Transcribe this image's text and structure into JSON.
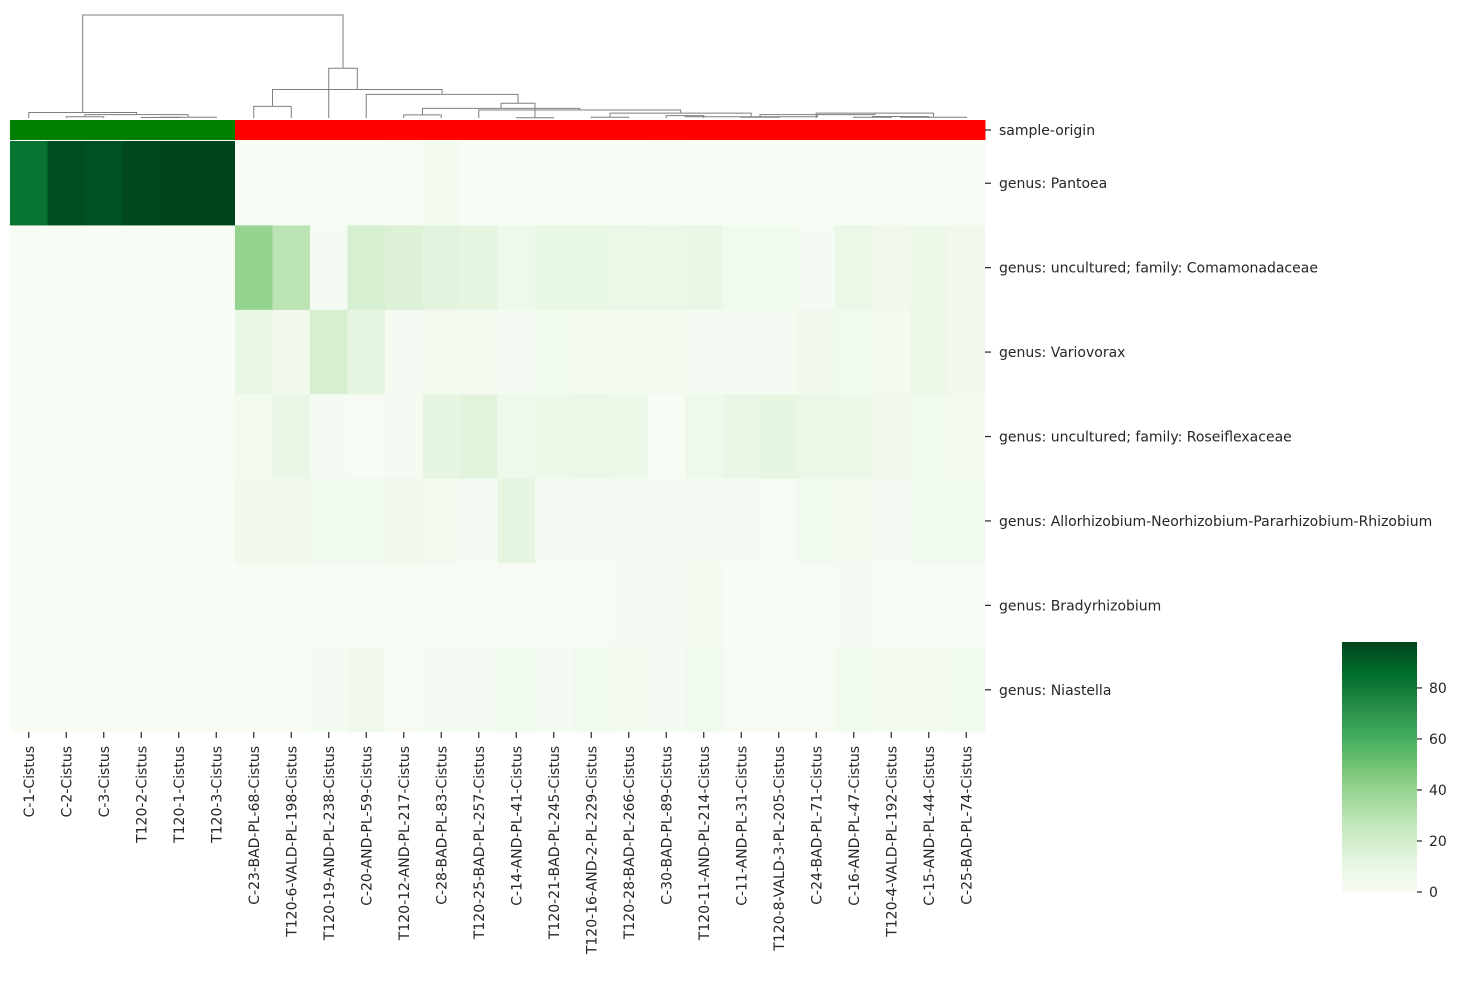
{
  "chart_data": {
    "type": "heatmap",
    "title": "",
    "xlabel": "",
    "ylabel": "",
    "columns": [
      "C-1-Cistus",
      "C-2-Cistus",
      "C-3-Cistus",
      "T120-2-Cistus",
      "T120-1-Cistus",
      "T120-3-Cistus",
      "C-23-BAD-PL-68-Cistus",
      "T120-6-VALD-PL-198-Cistus",
      "T120-19-AND-PL-238-Cistus",
      "C-20-AND-PL-59-Cistus",
      "T120-12-AND-PL-217-Cistus",
      "C-28-BAD-PL-83-Cistus",
      "T120-25-BAD-PL-257-Cistus",
      "C-14-AND-PL-41-Cistus",
      "T120-21-BAD-PL-245-Cistus",
      "T120-16-AND-2-PL-229-Cistus",
      "T120-28-BAD-PL-266-Cistus",
      "C-30-BAD-PL-89-Cistus",
      "T120-11-AND-PL-214-Cistus",
      "C-11-AND-PL-31-Cistus",
      "T120-8-VALD-3-PL-205-Cistus",
      "C-24-BAD-PL-71-Cistus",
      "C-16-AND-PL-47-Cistus",
      "T120-4-VALD-PL-192-Cistus",
      "C-15-AND-PL-44-Cistus",
      "C-25-BAD-PL-74-Cistus"
    ],
    "rows": [
      "genus: Pantoea",
      "genus: uncultured; family: Comamonadaceae",
      "genus: Variovorax",
      "genus: uncultured; family: Roseiflexaceae",
      "genus: Allorhizobium-Neorhizobium-Pararhizobium-Rhizobium",
      "genus: Bradyrhizobium",
      "genus: Niastella"
    ],
    "values": [
      [
        83,
        95,
        94,
        97,
        98,
        98,
        0,
        0,
        0,
        0,
        1,
        3,
        0,
        0,
        0,
        0,
        0,
        1,
        0,
        0,
        0,
        0,
        0,
        0,
        0,
        0
      ],
      [
        0,
        0,
        0,
        0,
        0,
        0,
        40,
        28,
        2,
        18,
        16,
        13,
        12,
        6,
        10,
        10,
        8,
        8,
        9,
        4,
        4,
        2,
        8,
        5,
        7,
        5
      ],
      [
        0,
        0,
        0,
        0,
        0,
        0,
        9,
        5,
        18,
        12,
        2,
        3,
        3,
        2,
        4,
        3,
        3,
        3,
        2,
        2,
        2,
        5,
        4,
        3,
        7,
        5
      ],
      [
        0,
        0,
        0,
        0,
        0,
        0,
        3,
        9,
        2,
        1,
        2,
        11,
        14,
        6,
        7,
        8,
        7,
        0,
        6,
        9,
        11,
        8,
        7,
        5,
        4,
        3
      ],
      [
        0,
        0,
        0,
        0,
        0,
        0,
        5,
        5,
        4,
        4,
        5,
        3,
        2,
        12,
        2,
        2,
        2,
        2,
        2,
        2,
        1,
        4,
        3,
        2,
        4,
        4
      ],
      [
        0,
        0,
        0,
        0,
        0,
        0,
        1,
        1,
        1,
        1,
        1,
        1,
        1,
        1,
        1,
        1,
        2,
        2,
        3,
        1,
        1,
        1,
        2,
        1,
        1,
        1
      ],
      [
        0,
        0,
        0,
        0,
        0,
        0,
        0,
        0,
        2,
        5,
        1,
        2,
        2,
        4,
        2,
        4,
        3,
        2,
        4,
        1,
        1,
        1,
        4,
        3,
        3,
        4
      ]
    ],
    "vmin": 0,
    "vmax": 98,
    "colormap": "Greens",
    "colorbar_ticks": [
      0,
      20,
      40,
      60,
      80
    ],
    "row_colors_label": "sample-origin",
    "sample_origin_colors": [
      "#008000",
      "#008000",
      "#008000",
      "#008000",
      "#008000",
      "#008000",
      "#ff0000",
      "#ff0000",
      "#ff0000",
      "#ff0000",
      "#ff0000",
      "#ff0000",
      "#ff0000",
      "#ff0000",
      "#ff0000",
      "#ff0000",
      "#ff0000",
      "#ff0000",
      "#ff0000",
      "#ff0000",
      "#ff0000",
      "#ff0000",
      "#ff0000",
      "#ff0000",
      "#ff0000",
      "#ff0000"
    ],
    "dendrogram": {
      "links": [
        [
          3,
          4,
          2
        ],
        [
          26,
          5,
          3
        ],
        [
          1,
          2,
          5
        ],
        [
          28,
          27,
          14
        ],
        [
          0,
          29,
          23
        ],
        [
          10,
          11,
          13
        ],
        [
          13,
          14,
          1
        ],
        [
          15,
          16,
          3
        ],
        [
          17,
          18,
          10
        ],
        [
          19,
          20,
          3
        ],
        [
          22,
          23,
          3
        ],
        [
          36,
          24,
          6
        ],
        [
          37,
          25,
          3
        ],
        [
          38,
          21,
          20
        ],
        [
          39,
          35,
          14
        ],
        [
          40,
          34,
          5
        ],
        [
          41,
          33,
          20
        ],
        [
          42,
          12,
          33
        ],
        [
          43,
          31,
          40
        ],
        [
          44,
          32,
          61
        ],
        [
          45,
          9,
          98
        ],
        [
          6,
          7,
          48
        ],
        [
          47,
          46,
          118
        ],
        [
          48,
          8,
          206
        ],
        [
          30,
          49,
          427
        ]
      ],
      "axis_max": 427
    }
  }
}
